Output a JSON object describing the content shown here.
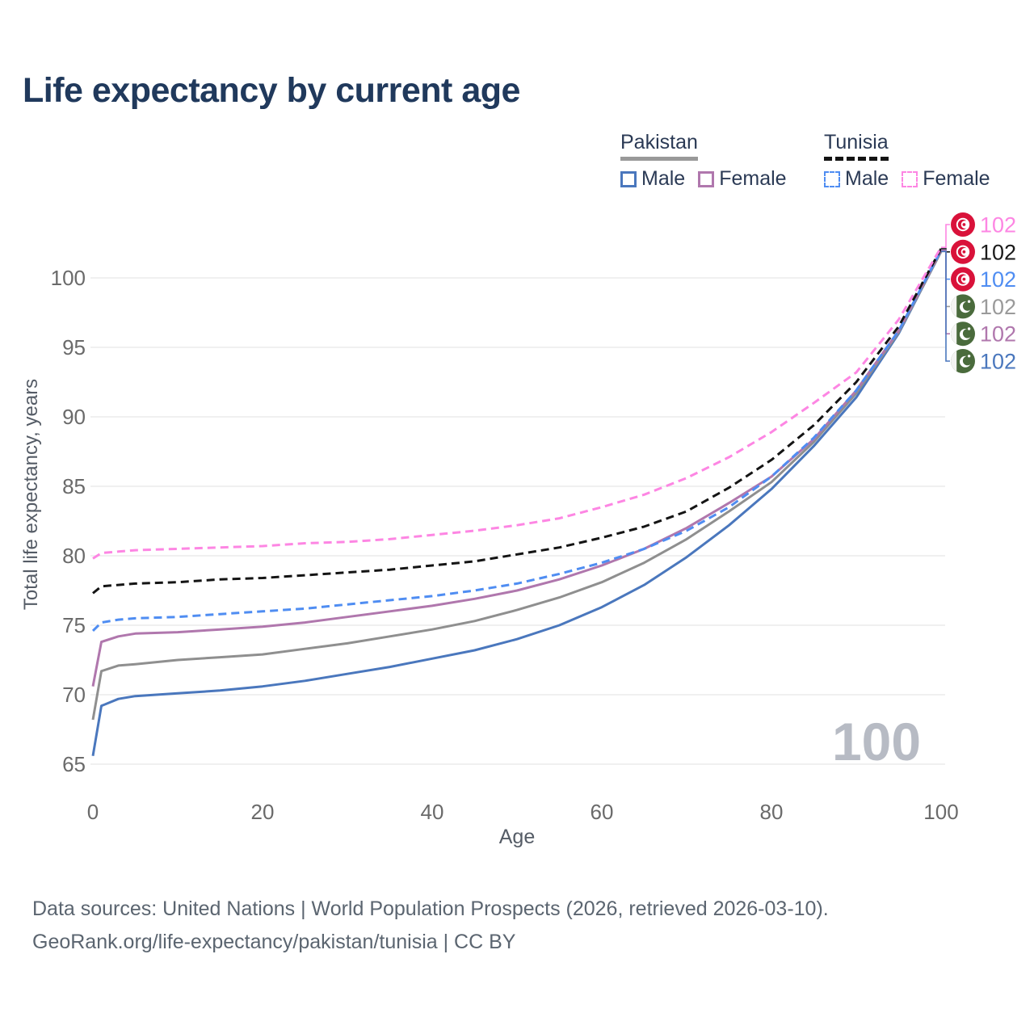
{
  "title": "Life expectancy by current age",
  "legend": {
    "groups": [
      {
        "country": "Pakistan",
        "line_style": "solid",
        "underline_color": "#999999",
        "items": [
          {
            "label": "Male",
            "color": "#4a77bd",
            "dashed": false
          },
          {
            "label": "Female",
            "color": "#b077ad",
            "dashed": false
          }
        ]
      },
      {
        "country": "Tunisia",
        "line_style": "dashed",
        "underline_color": "#141414",
        "items": [
          {
            "label": "Male",
            "color": "#4f8df2",
            "dashed": true
          },
          {
            "label": "Female",
            "color": "#fd86e3",
            "dashed": true
          }
        ]
      }
    ]
  },
  "chart_data": {
    "type": "line",
    "title": "Life expectancy by current age",
    "xlabel": "Age",
    "ylabel": "Total life expectancy, years",
    "xlim": [
      0,
      100
    ],
    "ylim": [
      64,
      103.5
    ],
    "x_ticks": [
      0,
      20,
      40,
      60,
      80,
      100
    ],
    "y_ticks": [
      65,
      70,
      75,
      80,
      85,
      90,
      95,
      100
    ],
    "grid": "horizontal",
    "legend_position": "top-right",
    "watermark_age": "100",
    "x": [
      0,
      1,
      3,
      5,
      10,
      15,
      20,
      25,
      30,
      35,
      40,
      45,
      50,
      55,
      60,
      65,
      70,
      75,
      80,
      85,
      90,
      95,
      100
    ],
    "series": [
      {
        "name": "Pakistan Male",
        "country": "Pakistan",
        "sex": "Male",
        "color": "#4a77bd",
        "dashed": false,
        "values": [
          65.6,
          69.2,
          69.7,
          69.9,
          70.1,
          70.3,
          70.6,
          71.0,
          71.5,
          72.0,
          72.6,
          73.2,
          74.0,
          75.0,
          76.3,
          77.9,
          79.9,
          82.2,
          84.8,
          87.9,
          91.4,
          96.0,
          101.9
        ]
      },
      {
        "name": "Pakistan Both sexes",
        "country": "Pakistan",
        "sex": "Both sexes",
        "color": "#8f8f8f",
        "dashed": false,
        "values": [
          68.2,
          71.7,
          72.1,
          72.2,
          72.5,
          72.7,
          72.9,
          73.3,
          73.7,
          74.2,
          74.7,
          75.3,
          76.1,
          77.0,
          78.1,
          79.5,
          81.2,
          83.2,
          85.3,
          88.2,
          91.7,
          96.1,
          101.9
        ]
      },
      {
        "name": "Pakistan Female",
        "country": "Pakistan",
        "sex": "Female",
        "color": "#b077ad",
        "dashed": false,
        "values": [
          70.6,
          73.8,
          74.2,
          74.4,
          74.5,
          74.7,
          74.9,
          75.2,
          75.6,
          76.0,
          76.4,
          76.9,
          77.5,
          78.3,
          79.3,
          80.5,
          82.0,
          83.8,
          85.7,
          88.4,
          91.9,
          96.2,
          102.0
        ]
      },
      {
        "name": "Tunisia Male",
        "country": "Tunisia",
        "sex": "Male",
        "color": "#4f8df2",
        "dashed": true,
        "values": [
          74.6,
          75.2,
          75.4,
          75.5,
          75.6,
          75.8,
          76.0,
          76.2,
          76.5,
          76.8,
          77.1,
          77.5,
          78.0,
          78.7,
          79.5,
          80.5,
          81.8,
          83.5,
          85.7,
          88.5,
          91.9,
          96.2,
          102.0
        ]
      },
      {
        "name": "Tunisia Both sexes",
        "country": "Tunisia",
        "sex": "Both sexes",
        "color": "#141414",
        "dashed": true,
        "values": [
          77.3,
          77.8,
          77.9,
          78.0,
          78.1,
          78.3,
          78.4,
          78.6,
          78.8,
          79.0,
          79.3,
          79.6,
          80.1,
          80.6,
          81.3,
          82.1,
          83.2,
          84.9,
          86.9,
          89.4,
          92.5,
          96.5,
          102.1
        ]
      },
      {
        "name": "Tunisia Female",
        "country": "Tunisia",
        "sex": "Female",
        "color": "#fd86e3",
        "dashed": true,
        "values": [
          79.8,
          80.2,
          80.3,
          80.4,
          80.5,
          80.6,
          80.7,
          80.9,
          81.0,
          81.2,
          81.5,
          81.8,
          82.2,
          82.7,
          83.5,
          84.4,
          85.6,
          87.1,
          88.9,
          91.0,
          93.2,
          97.0,
          102.2
        ]
      }
    ],
    "endpoint_labels": [
      {
        "series": "Tunisia Female",
        "country": "Tunisia",
        "value": "102",
        "color": "#fd86e3"
      },
      {
        "series": "Tunisia Both sexes",
        "country": "Tunisia",
        "value": "102",
        "color": "#1a1a1a"
      },
      {
        "series": "Tunisia Male",
        "country": "Tunisia",
        "value": "102",
        "color": "#4f8df2"
      },
      {
        "series": "Pakistan Both sexes",
        "country": "Pakistan",
        "value": "102",
        "color": "#9a9a9a"
      },
      {
        "series": "Pakistan Female",
        "country": "Pakistan",
        "value": "102",
        "color": "#b077ad"
      },
      {
        "series": "Pakistan Male",
        "country": "Pakistan",
        "value": "102",
        "color": "#4a77bd"
      }
    ],
    "flag_colors": {
      "tunisia_red": "#d9123a",
      "pakistan_green": "#4a6b3c"
    },
    "axis_text_color": "#6a6a6a",
    "grid_color": "#ececec",
    "watermark_color": "#b7bbc4"
  },
  "footer": {
    "line1": "Data sources: United Nations | World Population Prospects (2026, retrieved 2026-03-10).",
    "line2": "GeoRank.org/life-expectancy/pakistan/tunisia | CC BY"
  }
}
